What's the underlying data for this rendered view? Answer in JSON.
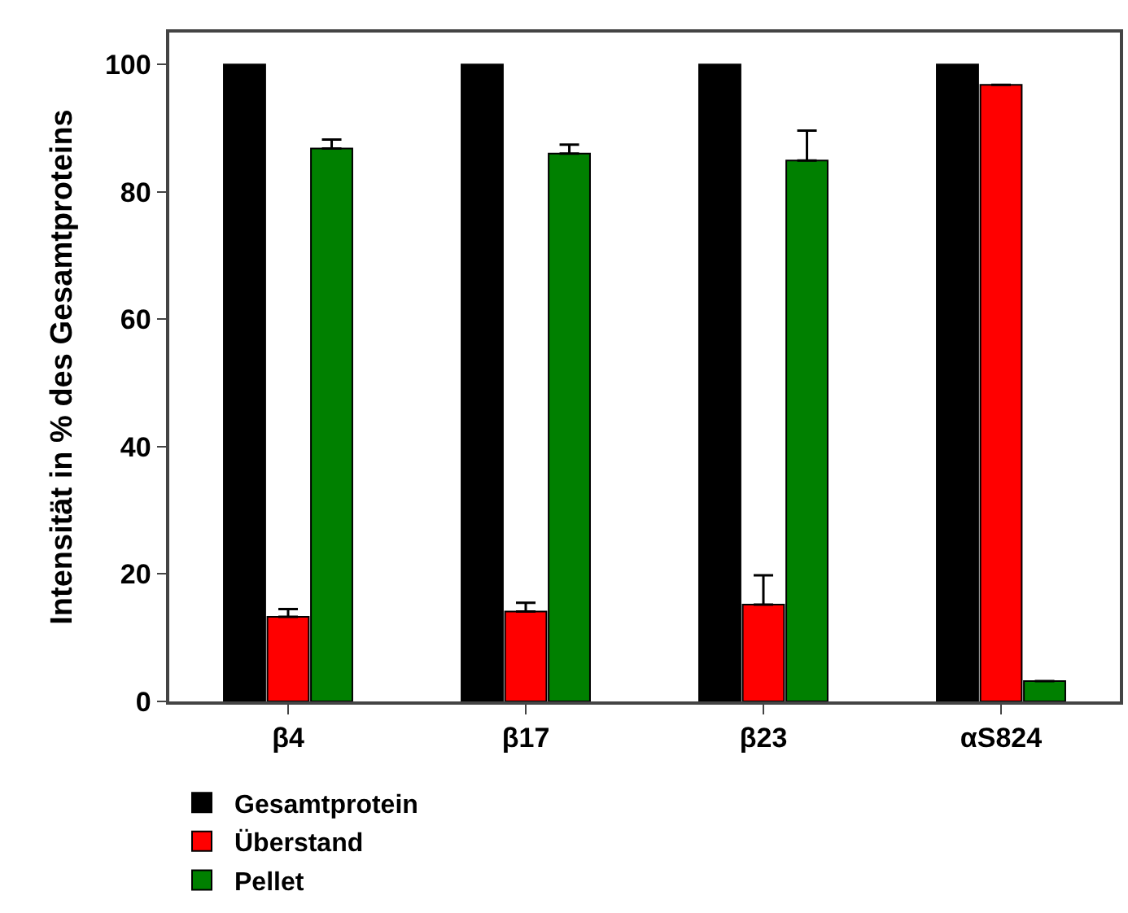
{
  "chart_data": {
    "type": "bar",
    "ylabel": "Intensität in % des Gesamtproteins",
    "categories": [
      "β4",
      "β17",
      "β23",
      "αS824"
    ],
    "series": [
      {
        "name": "Gesamtprotein",
        "color": "#000000",
        "values": [
          100,
          100,
          100,
          100
        ]
      },
      {
        "name": "Überstand",
        "color": "#ff0000",
        "values": [
          13.3,
          14.1,
          15.2,
          96.8
        ],
        "errors": [
          [
            13.3,
            14.5
          ],
          [
            14.1,
            15.5
          ],
          [
            15.2,
            19.8
          ],
          null
        ]
      },
      {
        "name": "Pellet",
        "color": "#008000",
        "values": [
          86.8,
          86.0,
          84.9,
          3.2
        ],
        "errors": [
          [
            86.8,
            88.2
          ],
          [
            86.0,
            87.4
          ],
          [
            84.9,
            89.6
          ],
          null
        ]
      }
    ],
    "ylim": [
      0,
      105
    ],
    "yticks": [
      0,
      20,
      40,
      60,
      80,
      100
    ],
    "legend": "bottom left"
  }
}
